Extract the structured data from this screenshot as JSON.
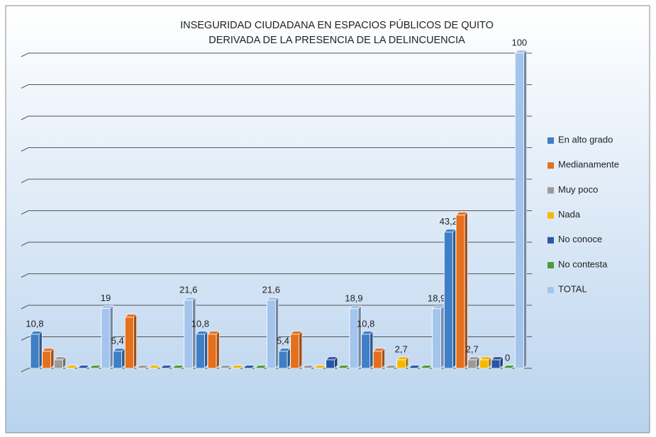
{
  "chart_data": {
    "type": "bar3d",
    "title": [
      "INSEGURIDAD CIUDADANA EN ESPACIOS PÚBLICOS DE QUITO",
      "DERIVADA DE LA PRESENCIA DE LA DELINCUENCIA"
    ],
    "categories": [
      null,
      null,
      null,
      null,
      null,
      null
    ],
    "ylim": [
      0,
      100
    ],
    "yticks": [
      0,
      10,
      20,
      30,
      40,
      50,
      60,
      70,
      80,
      90,
      100
    ],
    "grid": true,
    "legend": "right",
    "series": [
      {
        "name": "En alto grado",
        "color": "#3f7fc6",
        "values": [
          10.8,
          5.4,
          10.8,
          5.4,
          10.8,
          43.2
        ],
        "value_labels": [
          "10,8",
          "5,4",
          "10,8",
          "5,4",
          "10,8",
          "43,2"
        ]
      },
      {
        "name": "Medianamente",
        "color": "#e4701e",
        "values": [
          5.4,
          16.2,
          10.8,
          10.8,
          5.4,
          48.6
        ],
        "value_labels": [
          null,
          null,
          null,
          null,
          null,
          null
        ]
      },
      {
        "name": "Muy poco",
        "color": "#9a9a9a",
        "values": [
          2.7,
          0,
          0,
          0,
          0,
          2.7
        ],
        "value_labels": [
          null,
          null,
          null,
          null,
          null,
          "2,7"
        ]
      },
      {
        "name": "Nada",
        "color": "#f5b800",
        "values": [
          0,
          0,
          0,
          0,
          2.7,
          2.7
        ],
        "value_labels": [
          null,
          null,
          null,
          null,
          "2,7",
          null
        ]
      },
      {
        "name": "No conoce",
        "color": "#2b56a8",
        "values": [
          0,
          0,
          0,
          2.7,
          0,
          2.7
        ],
        "value_labels": [
          null,
          null,
          null,
          null,
          null,
          null
        ]
      },
      {
        "name": "No contesta",
        "color": "#4e9a36",
        "values": [
          0,
          0,
          0,
          0,
          0,
          0
        ],
        "value_labels": [
          null,
          null,
          null,
          null,
          null,
          "0"
        ]
      },
      {
        "name": "TOTAL",
        "color": "#a3c4ec",
        "values": [
          19,
          21.6,
          21.6,
          18.9,
          18.9,
          100
        ],
        "value_labels": [
          "19",
          "21,6",
          "21,6",
          "18,9",
          "18,9",
          "100"
        ]
      }
    ]
  }
}
